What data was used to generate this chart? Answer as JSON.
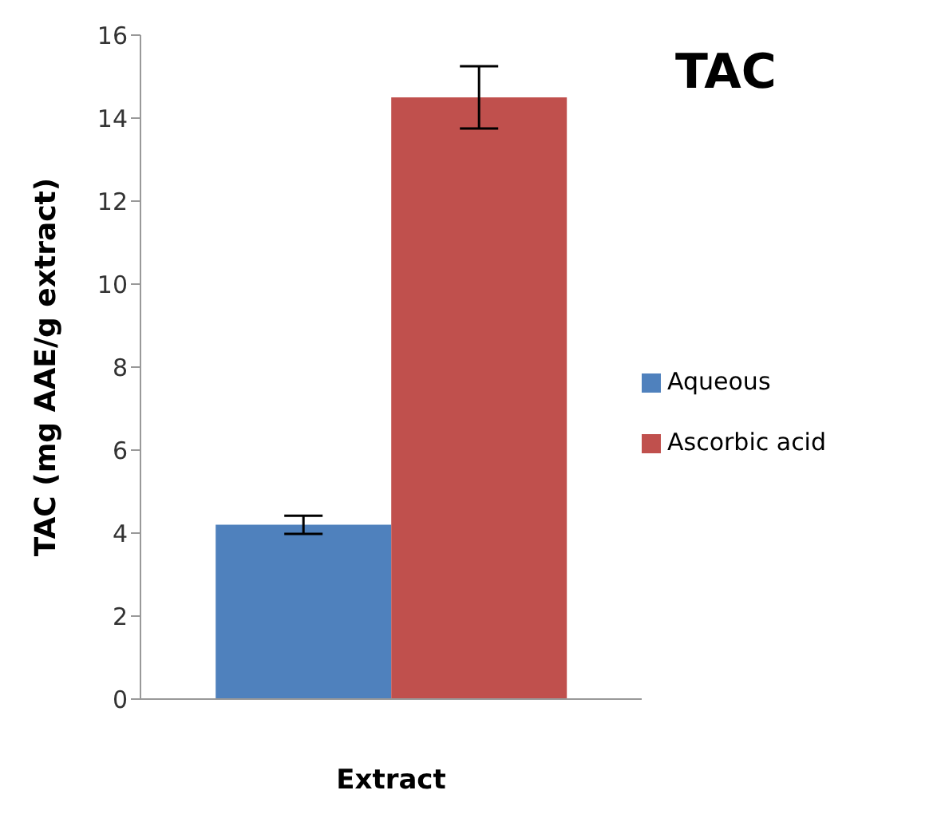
{
  "chart_data": {
    "type": "bar",
    "title": "TAC",
    "xlabel": "Extract",
    "ylabel": "TAC (mg AAE/g extract)",
    "categories": [
      null
    ],
    "series": [
      {
        "name": "Aqueous",
        "color": "#4f81bd",
        "values": [
          4.2
        ],
        "errors": [
          0.22
        ]
      },
      {
        "name": "Ascorbic acid",
        "color": "#c0504d",
        "values": [
          14.5
        ],
        "errors": [
          0.75
        ]
      }
    ],
    "ylim": [
      0,
      16
    ],
    "yticks": [
      0,
      2,
      4,
      6,
      8,
      10,
      12,
      14,
      16
    ],
    "grid": false,
    "legend": "right",
    "tick_labels": "y"
  }
}
